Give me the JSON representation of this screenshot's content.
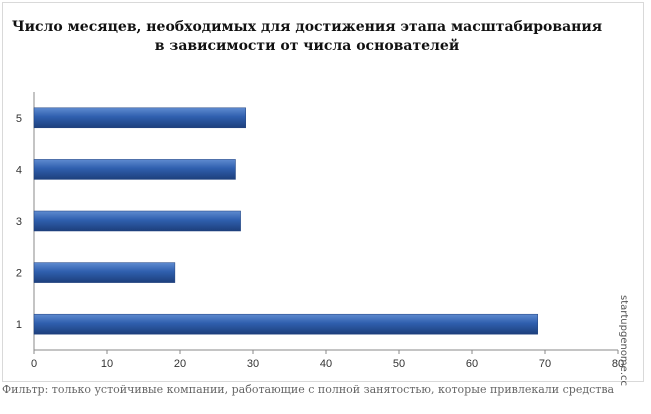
{
  "chart_data": {
    "type": "bar",
    "orientation": "horizontal",
    "title": "Число месяцев, необходимых для достижения этапа масштабирования в зависимости от числа основателей",
    "title_lines": [
      "Число месяцев, необходимых для достижения этапа масштабирования",
      "в зависимости от числа основателей"
    ],
    "categories": [
      "1",
      "2",
      "3",
      "4",
      "5"
    ],
    "values": [
      69,
      19.3,
      28.3,
      27.6,
      29
    ],
    "xlim": [
      0,
      80
    ],
    "xticks": [
      0,
      10,
      20,
      30,
      40,
      50,
      60,
      70,
      80
    ],
    "grid": false,
    "bar_color": "#2f5fae",
    "bar_color_dark": "#1d3f7c",
    "bar_color_light": "#5f8bd0"
  },
  "watermark": "startupgenome.cc",
  "footnote": "Фильтр: только устойчивые компании, работающие с полной занятостью, которые привлекали средства"
}
